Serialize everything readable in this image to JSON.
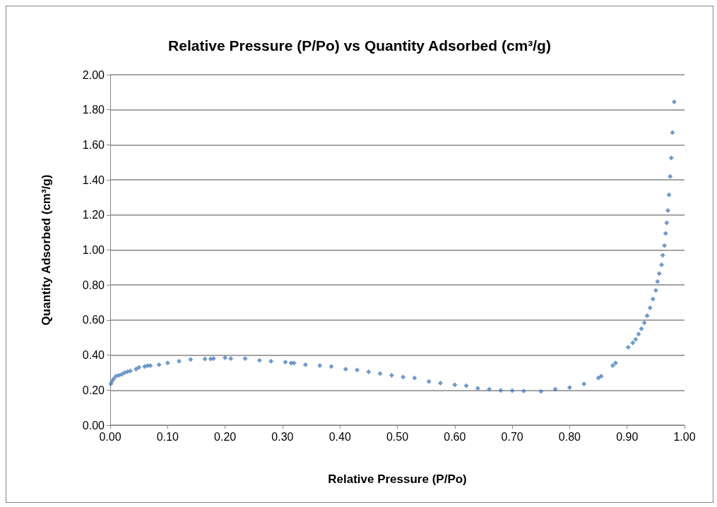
{
  "chart_data": {
    "type": "scatter",
    "title": "Relative Pressure (P/Po) vs Quantity Adsorbed (cm³/g)",
    "xlabel": "Relative Pressure (P/Po)",
    "ylabel": "Quantity Adsorbed (cm³/g)",
    "xlim": [
      0,
      1
    ],
    "xticks": [
      {
        "value": 0,
        "label": "0.00"
      },
      {
        "value": 0.1,
        "label": "0.10"
      },
      {
        "value": 0.2,
        "label": "0.20"
      },
      {
        "value": 0.3,
        "label": "0.30"
      },
      {
        "value": 0.4,
        "label": "0.40"
      },
      {
        "value": 0.5,
        "label": "0.50"
      },
      {
        "value": 0.6,
        "label": "0.60"
      },
      {
        "value": 0.7,
        "label": "0.70"
      },
      {
        "value": 0.8,
        "label": "0.80"
      },
      {
        "value": 0.9,
        "label": "0.90"
      },
      {
        "value": 1,
        "label": "1.00"
      }
    ],
    "ylim": [
      0,
      2
    ],
    "yticks": [
      {
        "value": 0,
        "label": "0.00"
      },
      {
        "value": 0.2,
        "label": "0.20"
      },
      {
        "value": 0.4,
        "label": "0.40"
      },
      {
        "value": 0.6,
        "label": "0.60"
      },
      {
        "value": 0.8,
        "label": "0.80"
      },
      {
        "value": 1,
        "label": "1.00"
      },
      {
        "value": 1.2,
        "label": "1.20"
      },
      {
        "value": 1.4,
        "label": "1.40"
      },
      {
        "value": 1.6,
        "label": "1.60"
      },
      {
        "value": 1.8,
        "label": "1.80"
      },
      {
        "value": 2,
        "label": "2.00"
      }
    ],
    "grid": "y",
    "marker": "diamond",
    "series": [
      {
        "color": "#4f81bd",
        "x": [
          0.001,
          0.003,
          0.006,
          0.01,
          0.015,
          0.02,
          0.025,
          0.03,
          0.035,
          0.045,
          0.05,
          0.06,
          0.065,
          0.07,
          0.085,
          0.1,
          0.12,
          0.14,
          0.165,
          0.175,
          0.18,
          0.2,
          0.21,
          0.235,
          0.26,
          0.28,
          0.305,
          0.315,
          0.32,
          0.34,
          0.365,
          0.385,
          0.41,
          0.43,
          0.45,
          0.47,
          0.49,
          0.51,
          0.53,
          0.555,
          0.575,
          0.6,
          0.62,
          0.64,
          0.66,
          0.68,
          0.7,
          0.72,
          0.75,
          0.775,
          0.8,
          0.825,
          0.85,
          0.855,
          0.875,
          0.88,
          0.902,
          0.91,
          0.915,
          0.92,
          0.925,
          0.93,
          0.935,
          0.94,
          0.945,
          0.95,
          0.953,
          0.956,
          0.96,
          0.962,
          0.965,
          0.967,
          0.969,
          0.971,
          0.973,
          0.975,
          0.977,
          0.979,
          0.982
        ],
        "values": [
          0.235,
          0.25,
          0.265,
          0.28,
          0.285,
          0.29,
          0.3,
          0.305,
          0.31,
          0.32,
          0.33,
          0.335,
          0.34,
          0.34,
          0.345,
          0.355,
          0.365,
          0.375,
          0.378,
          0.378,
          0.38,
          0.385,
          0.38,
          0.38,
          0.37,
          0.365,
          0.36,
          0.355,
          0.355,
          0.345,
          0.34,
          0.335,
          0.32,
          0.315,
          0.305,
          0.295,
          0.285,
          0.275,
          0.27,
          0.25,
          0.24,
          0.23,
          0.225,
          0.21,
          0.205,
          0.198,
          0.197,
          0.195,
          0.193,
          0.205,
          0.215,
          0.235,
          0.27,
          0.28,
          0.34,
          0.355,
          0.445,
          0.47,
          0.49,
          0.52,
          0.55,
          0.585,
          0.625,
          0.67,
          0.72,
          0.77,
          0.82,
          0.865,
          0.915,
          0.97,
          1.025,
          1.095,
          1.155,
          1.225,
          1.315,
          1.42,
          1.525,
          1.67,
          1.845
        ]
      }
    ]
  }
}
